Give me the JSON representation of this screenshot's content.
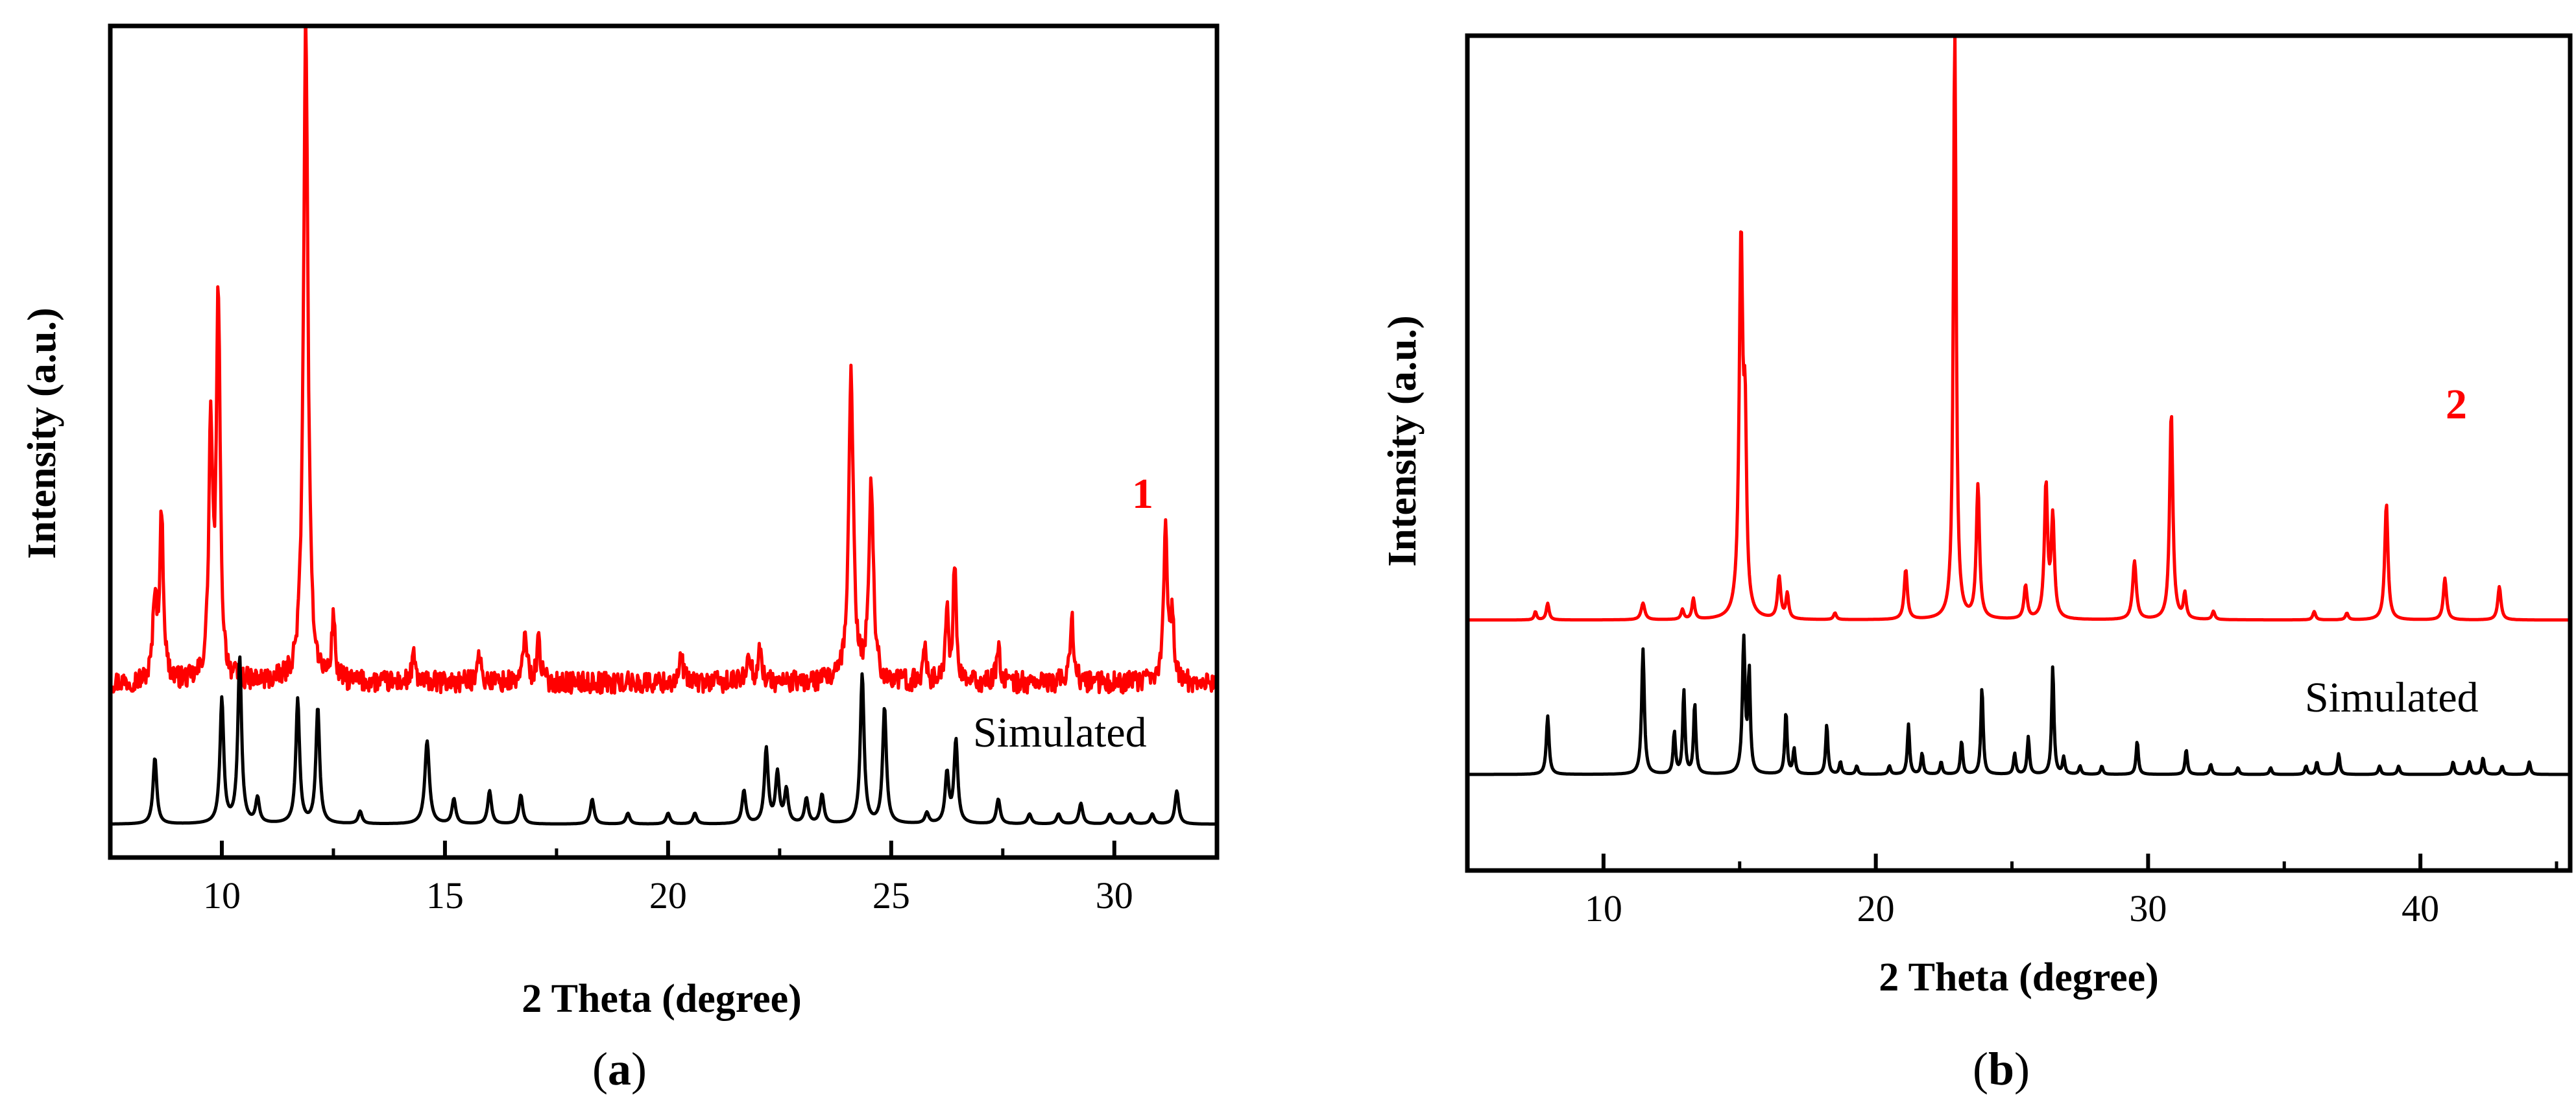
{
  "figure": {
    "panels": [
      {
        "tag_open": "(",
        "tag_letter": "a",
        "tag_close": ")"
      },
      {
        "tag_open": "(",
        "tag_letter": "b",
        "tag_close": ")"
      }
    ]
  },
  "colors": {
    "experimental": "#ff0000",
    "simulated": "#000000",
    "axes": "#000000"
  },
  "chart_data": [
    {
      "type": "line",
      "panel": "a",
      "xlabel": "2 Theta (degree)",
      "ylabel": "Intensity (a.u.)",
      "xlim": [
        7.5,
        32.3
      ],
      "ylim": [
        0,
        100
      ],
      "xticks": [
        10,
        15,
        20,
        25,
        30
      ],
      "minor_step": 2.5,
      "yticks_shown": false,
      "series": [
        {
          "name": "1",
          "label_color": "#ff0000",
          "color": "#ff0000",
          "baseline": 21,
          "noise": 1.3,
          "peaks": [
            {
              "x": 8.5,
              "h": 10,
              "w": 0.05
            },
            {
              "x": 8.65,
              "h": 20,
              "w": 0.05
            },
            {
              "x": 9.75,
              "h": 30,
              "w": 0.05
            },
            {
              "x": 9.92,
              "h": 46,
              "w": 0.05
            },
            {
              "x": 11.88,
              "h": 80,
              "w": 0.06
            },
            {
              "x": 12.5,
              "h": 8,
              "w": 0.04
            },
            {
              "x": 14.3,
              "h": 3,
              "w": 0.05
            },
            {
              "x": 15.75,
              "h": 4,
              "w": 0.05
            },
            {
              "x": 16.8,
              "h": 6,
              "w": 0.05
            },
            {
              "x": 17.1,
              "h": 5,
              "w": 0.05
            },
            {
              "x": 20.3,
              "h": 3,
              "w": 0.05
            },
            {
              "x": 21.8,
              "h": 4,
              "w": 0.05
            },
            {
              "x": 22.05,
              "h": 4,
              "w": 0.05
            },
            {
              "x": 24.1,
              "h": 38,
              "w": 0.06
            },
            {
              "x": 24.55,
              "h": 24,
              "w": 0.06
            },
            {
              "x": 25.75,
              "h": 5,
              "w": 0.04
            },
            {
              "x": 26.25,
              "h": 9,
              "w": 0.04
            },
            {
              "x": 26.42,
              "h": 14,
              "w": 0.04
            },
            {
              "x": 27.4,
              "h": 5,
              "w": 0.04
            },
            {
              "x": 29.05,
              "h": 8,
              "w": 0.05
            },
            {
              "x": 31.15,
              "h": 19,
              "w": 0.05
            },
            {
              "x": 31.3,
              "h": 8,
              "w": 0.04
            }
          ]
        },
        {
          "name": "Simulated",
          "label_color": "#000000",
          "color": "#000000",
          "baseline": 4,
          "noise": 0,
          "peaks": [
            {
              "x": 8.5,
              "h": 8,
              "w": 0.05
            },
            {
              "x": 10.0,
              "h": 15,
              "w": 0.05
            },
            {
              "x": 10.4,
              "h": 20,
              "w": 0.05
            },
            {
              "x": 10.8,
              "h": 3,
              "w": 0.05
            },
            {
              "x": 11.7,
              "h": 15,
              "w": 0.05
            },
            {
              "x": 12.15,
              "h": 14,
              "w": 0.05
            },
            {
              "x": 13.1,
              "h": 1.5,
              "w": 0.05
            },
            {
              "x": 14.6,
              "h": 10,
              "w": 0.06
            },
            {
              "x": 15.2,
              "h": 3,
              "w": 0.05
            },
            {
              "x": 16.0,
              "h": 4,
              "w": 0.05
            },
            {
              "x": 16.7,
              "h": 3.5,
              "w": 0.05
            },
            {
              "x": 18.3,
              "h": 3,
              "w": 0.05
            },
            {
              "x": 19.1,
              "h": 1.3,
              "w": 0.05
            },
            {
              "x": 20.0,
              "h": 1.3,
              "w": 0.05
            },
            {
              "x": 20.6,
              "h": 1.3,
              "w": 0.05
            },
            {
              "x": 21.7,
              "h": 4,
              "w": 0.05
            },
            {
              "x": 22.2,
              "h": 9,
              "w": 0.05
            },
            {
              "x": 22.45,
              "h": 6,
              "w": 0.05
            },
            {
              "x": 22.65,
              "h": 4,
              "w": 0.05
            },
            {
              "x": 23.1,
              "h": 3,
              "w": 0.05
            },
            {
              "x": 23.45,
              "h": 3.5,
              "w": 0.05
            },
            {
              "x": 24.35,
              "h": 18,
              "w": 0.05
            },
            {
              "x": 24.85,
              "h": 14,
              "w": 0.05
            },
            {
              "x": 25.8,
              "h": 1.3,
              "w": 0.05
            },
            {
              "x": 26.25,
              "h": 6,
              "w": 0.05
            },
            {
              "x": 26.45,
              "h": 10,
              "w": 0.05
            },
            {
              "x": 27.4,
              "h": 3,
              "w": 0.05
            },
            {
              "x": 28.1,
              "h": 1.2,
              "w": 0.05
            },
            {
              "x": 28.75,
              "h": 1.2,
              "w": 0.05
            },
            {
              "x": 29.25,
              "h": 2.5,
              "w": 0.05
            },
            {
              "x": 29.9,
              "h": 1.2,
              "w": 0.05
            },
            {
              "x": 30.35,
              "h": 1.2,
              "w": 0.05
            },
            {
              "x": 30.85,
              "h": 1.2,
              "w": 0.05
            },
            {
              "x": 31.4,
              "h": 4,
              "w": 0.05
            }
          ]
        }
      ]
    },
    {
      "type": "line",
      "panel": "b",
      "xlabel": "2 Theta (degree)",
      "ylabel": "Intensity (a.u.)",
      "xlim": [
        5,
        45.5
      ],
      "ylim": [
        0,
        100
      ],
      "xticks": [
        10,
        20,
        30,
        40
      ],
      "minor_step": 5,
      "yticks_shown": false,
      "series": [
        {
          "name": "2",
          "label_color": "#ff0000",
          "color": "#ff0000",
          "baseline": 30,
          "noise": 0,
          "peaks": [
            {
              "x": 7.5,
              "h": 1,
              "w": 0.05
            },
            {
              "x": 7.95,
              "h": 2,
              "w": 0.06
            },
            {
              "x": 11.45,
              "h": 2,
              "w": 0.08
            },
            {
              "x": 12.9,
              "h": 1.2,
              "w": 0.06
            },
            {
              "x": 13.3,
              "h": 2.5,
              "w": 0.06
            },
            {
              "x": 15.05,
              "h": 45,
              "w": 0.08
            },
            {
              "x": 15.2,
              "h": 20,
              "w": 0.06
            },
            {
              "x": 16.45,
              "h": 5,
              "w": 0.07
            },
            {
              "x": 16.75,
              "h": 3,
              "w": 0.06
            },
            {
              "x": 18.5,
              "h": 0.8,
              "w": 0.06
            },
            {
              "x": 21.1,
              "h": 6,
              "w": 0.07
            },
            {
              "x": 22.9,
              "h": 71,
              "w": 0.06
            },
            {
              "x": 23.75,
              "h": 16,
              "w": 0.07
            },
            {
              "x": 25.5,
              "h": 4,
              "w": 0.07
            },
            {
              "x": 26.25,
              "h": 16,
              "w": 0.07
            },
            {
              "x": 26.5,
              "h": 12,
              "w": 0.07
            },
            {
              "x": 29.5,
              "h": 7,
              "w": 0.08
            },
            {
              "x": 30.85,
              "h": 25,
              "w": 0.07
            },
            {
              "x": 31.35,
              "h": 3,
              "w": 0.06
            },
            {
              "x": 32.4,
              "h": 1,
              "w": 0.06
            },
            {
              "x": 36.1,
              "h": 1,
              "w": 0.06
            },
            {
              "x": 37.3,
              "h": 0.8,
              "w": 0.06
            },
            {
              "x": 38.75,
              "h": 14,
              "w": 0.07
            },
            {
              "x": 40.9,
              "h": 5,
              "w": 0.07
            },
            {
              "x": 42.9,
              "h": 4,
              "w": 0.07
            }
          ]
        },
        {
          "name": "Simulated",
          "label_color": "#000000",
          "color": "#000000",
          "baseline": 11.5,
          "noise": 0,
          "peaks": [
            {
              "x": 7.95,
              "h": 7,
              "w": 0.06
            },
            {
              "x": 11.45,
              "h": 15,
              "w": 0.06
            },
            {
              "x": 12.6,
              "h": 5,
              "w": 0.05
            },
            {
              "x": 12.95,
              "h": 10,
              "w": 0.05
            },
            {
              "x": 13.35,
              "h": 8.5,
              "w": 0.05
            },
            {
              "x": 15.15,
              "h": 16,
              "w": 0.06
            },
            {
              "x": 15.35,
              "h": 12,
              "w": 0.05
            },
            {
              "x": 16.7,
              "h": 7.5,
              "w": 0.05
            },
            {
              "x": 17.0,
              "h": 3,
              "w": 0.05
            },
            {
              "x": 18.2,
              "h": 6,
              "w": 0.05
            },
            {
              "x": 18.7,
              "h": 1.5,
              "w": 0.05
            },
            {
              "x": 19.3,
              "h": 1,
              "w": 0.05
            },
            {
              "x": 20.5,
              "h": 1,
              "w": 0.05
            },
            {
              "x": 21.2,
              "h": 6,
              "w": 0.05
            },
            {
              "x": 21.7,
              "h": 2.5,
              "w": 0.05
            },
            {
              "x": 22.4,
              "h": 1.5,
              "w": 0.05
            },
            {
              "x": 23.15,
              "h": 4,
              "w": 0.05
            },
            {
              "x": 23.9,
              "h": 10.5,
              "w": 0.05
            },
            {
              "x": 25.1,
              "h": 2.5,
              "w": 0.05
            },
            {
              "x": 25.6,
              "h": 4.5,
              "w": 0.05
            },
            {
              "x": 26.5,
              "h": 13,
              "w": 0.05
            },
            {
              "x": 26.9,
              "h": 2,
              "w": 0.05
            },
            {
              "x": 27.5,
              "h": 1,
              "w": 0.05
            },
            {
              "x": 28.3,
              "h": 1,
              "w": 0.05
            },
            {
              "x": 29.6,
              "h": 4,
              "w": 0.05
            },
            {
              "x": 31.4,
              "h": 3,
              "w": 0.05
            },
            {
              "x": 32.3,
              "h": 1.2,
              "w": 0.05
            },
            {
              "x": 33.3,
              "h": 0.8,
              "w": 0.05
            },
            {
              "x": 34.5,
              "h": 0.8,
              "w": 0.05
            },
            {
              "x": 35.8,
              "h": 1,
              "w": 0.05
            },
            {
              "x": 36.2,
              "h": 1.5,
              "w": 0.05
            },
            {
              "x": 37.0,
              "h": 2.5,
              "w": 0.05
            },
            {
              "x": 38.5,
              "h": 1,
              "w": 0.05
            },
            {
              "x": 39.2,
              "h": 1,
              "w": 0.05
            },
            {
              "x": 41.2,
              "h": 1.5,
              "w": 0.05
            },
            {
              "x": 41.8,
              "h": 1.5,
              "w": 0.05
            },
            {
              "x": 42.3,
              "h": 2,
              "w": 0.05
            },
            {
              "x": 43.0,
              "h": 1,
              "w": 0.05
            },
            {
              "x": 44.0,
              "h": 1.5,
              "w": 0.05
            }
          ]
        }
      ]
    }
  ]
}
